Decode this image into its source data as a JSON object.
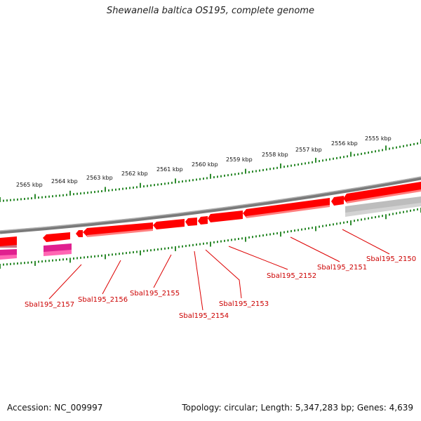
{
  "title": "Shewanella baltica OS195, complete genome",
  "footer": {
    "accession": "Accession: NC_009997",
    "stats": "Topology: circular; Length: 5,347,283 bp; Genes: 4,639"
  },
  "colors": {
    "gene_red": "#ff0000",
    "gene_magenta": "#ff1493",
    "tick_green": "#2e8b2e",
    "label_red": "#cc0000",
    "backbone_gray": "#808080",
    "feature_gray": "#bdbdbd"
  },
  "kbp_ticks": [
    "2555 kbp",
    "2556 kbp",
    "2557 kbp",
    "2558 kbp",
    "2559 kbp",
    "2560 kbp",
    "2561 kbp",
    "2562 kbp",
    "2563 kbp",
    "2564 kbp",
    "2565 kbp"
  ],
  "gene_labels": [
    "Sbal195_2150",
    "Sbal195_2151",
    "Sbal195_2152",
    "Sbal195_2153",
    "Sbal195_2154",
    "Sbal195_2155",
    "Sbal195_2156",
    "Sbal195_2157"
  ]
}
